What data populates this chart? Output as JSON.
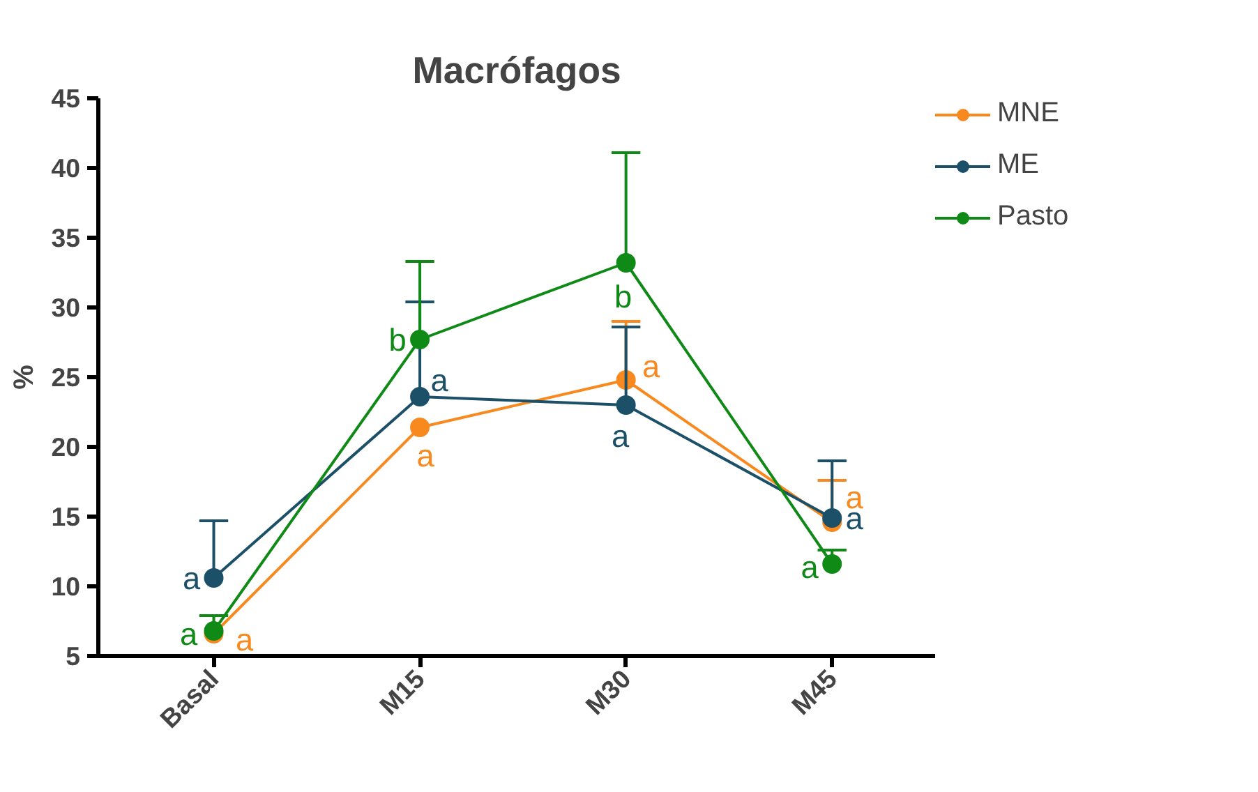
{
  "chart_data": {
    "type": "line",
    "title": "Macrófagos",
    "ylabel": "%",
    "categories": [
      "Basal",
      "M15",
      "M30",
      "M45"
    ],
    "ylim": [
      5,
      45
    ],
    "yticks": [
      5,
      10,
      15,
      20,
      25,
      30,
      35,
      40,
      45
    ],
    "grid": false,
    "legend": "top right",
    "marker": "circle",
    "line_style": "solid",
    "series": [
      {
        "name": "MNE",
        "color": "#f7891f",
        "values": [
          6.6,
          21.4,
          24.8,
          14.6
        ],
        "errors": [
          null,
          null,
          [
            24.8,
            29.0
          ],
          [
            14.6,
            17.6
          ]
        ],
        "value_labels": [
          "a",
          "a",
          "a",
          "a"
        ]
      },
      {
        "name": "ME",
        "color": "#1b5068",
        "values": [
          10.6,
          23.6,
          23.0,
          14.9
        ],
        "errors": [
          [
            10.6,
            14.7
          ],
          [
            23.6,
            30.4
          ],
          [
            23.0,
            28.6
          ],
          [
            14.9,
            19.0
          ]
        ],
        "value_labels": [
          "a",
          "a",
          "a",
          "a"
        ]
      },
      {
        "name": "Pasto",
        "color": "#0f8a17",
        "values": [
          6.8,
          27.7,
          33.2,
          11.6
        ],
        "errors": [
          [
            6.8,
            7.9
          ],
          [
            27.7,
            33.3
          ],
          [
            33.2,
            41.1
          ],
          [
            11.6,
            12.6
          ]
        ],
        "value_labels": [
          "a",
          "b",
          "b",
          "a"
        ]
      }
    ]
  }
}
